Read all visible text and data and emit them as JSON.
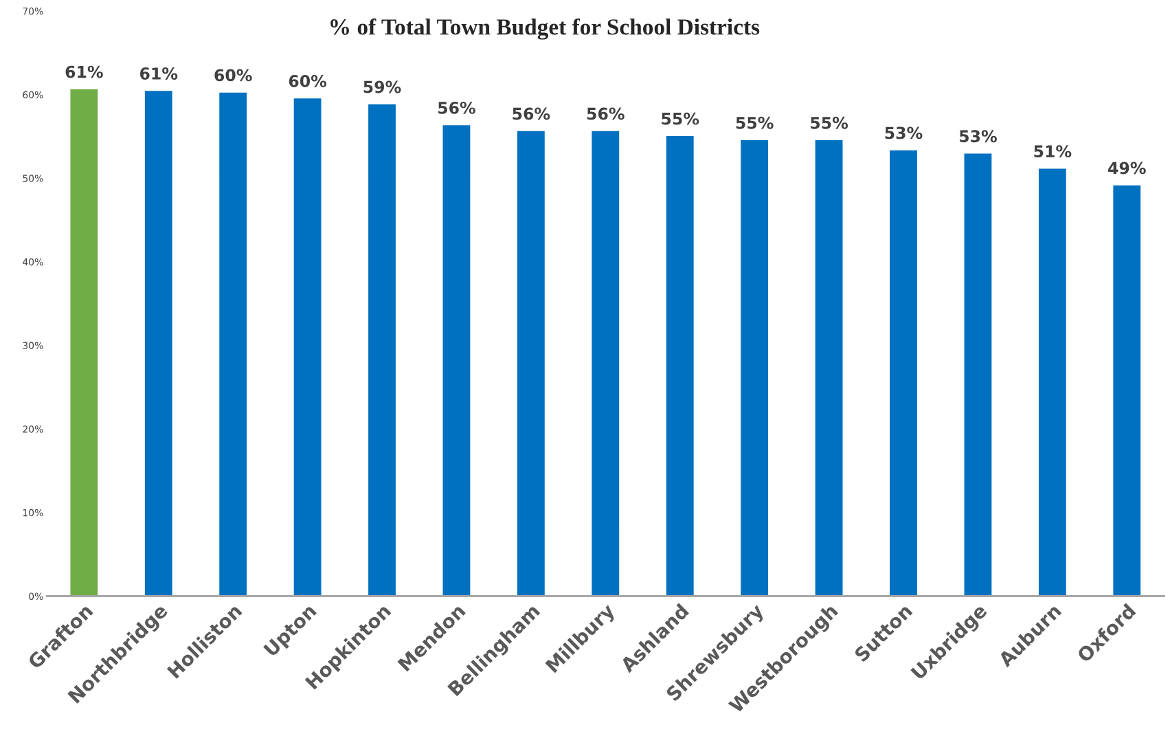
{
  "chart_data": {
    "type": "bar",
    "title": "% of Total Town Budget for School Districts",
    "categories": [
      "Grafton",
      "Northbridge",
      "Holliston",
      "Upton",
      "Hopkinton",
      "Mendon",
      "Bellingham",
      "Millbury",
      "Ashland",
      "Shrewsbury",
      "Westborough",
      "Sutton",
      "Uxbridge",
      "Auburn",
      "Oxford"
    ],
    "values": [
      60.7,
      60.5,
      60.3,
      59.6,
      58.9,
      56.4,
      55.7,
      55.7,
      55.1,
      54.6,
      54.6,
      53.4,
      53.0,
      51.2,
      49.2
    ],
    "colors": [
      "#70ad47",
      "#0070c0",
      "#0070c0",
      "#0070c0",
      "#0070c0",
      "#0070c0",
      "#0070c0",
      "#0070c0",
      "#0070c0",
      "#0070c0",
      "#0070c0",
      "#0070c0",
      "#0070c0",
      "#0070c0",
      "#0070c0"
    ],
    "value_labels": [
      "61%",
      "61%",
      "60%",
      "60%",
      "59%",
      "56%",
      "56%",
      "56%",
      "55%",
      "55%",
      "55%",
      "53%",
      "53%",
      "51%",
      "49%"
    ],
    "ylim": [
      0,
      70
    ],
    "yticks": [
      {
        "value": 0,
        "label": "0%"
      },
      {
        "value": 10,
        "label": "10%"
      },
      {
        "value": 20,
        "label": "20%"
      },
      {
        "value": 30,
        "label": "30%"
      },
      {
        "value": 40,
        "label": "40%"
      },
      {
        "value": 50,
        "label": "50%"
      },
      {
        "value": 60,
        "label": "60%"
      },
      {
        "value": 70,
        "label": "70%"
      }
    ],
    "grid": false,
    "legend": false
  }
}
